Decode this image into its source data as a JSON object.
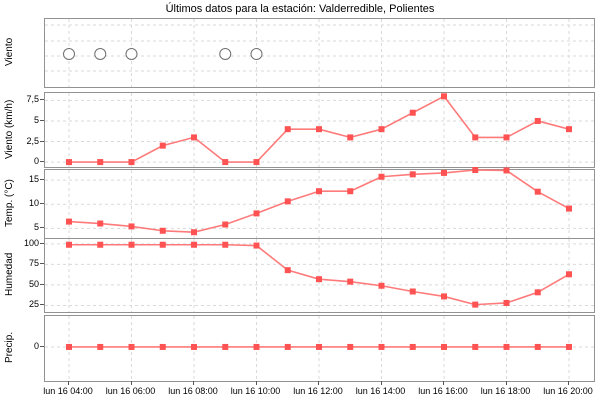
{
  "title": "Últimos datos para la estación: Valderredible, Polientes",
  "colors": {
    "line": "#ff7a7a",
    "marker": "#ff5353",
    "grid": "#d9d9d9",
    "panel_border": "#929292",
    "tick": "#555555",
    "text": "#000000",
    "calm_circle_stroke": "#6f6f6f",
    "background": "#ffffff"
  },
  "x_axis": {
    "times": [
      "04:00",
      "05:00",
      "06:00",
      "07:00",
      "08:00",
      "09:00",
      "10:00",
      "11:00",
      "12:00",
      "13:00",
      "14:00",
      "15:00",
      "16:00",
      "17:00",
      "18:00",
      "19:00",
      "20:00"
    ],
    "tick_labels": [
      "lun 16 04:00",
      "lun 16 06:00",
      "lun 16 08:00",
      "lun 16 10:00",
      "lun 16 12:00",
      "lun 16 14:00",
      "lun 16 16:00",
      "lun 16 18:00",
      "lun 16 20:00"
    ]
  },
  "chart_data": [
    {
      "type": "scatter",
      "ylabel": "Viento",
      "symbol": "calm-circle",
      "calm_times": [
        "04:00",
        "05:00",
        "06:00",
        "09:00",
        "10:00"
      ]
    },
    {
      "type": "line",
      "ylabel": "Viento (km/h)",
      "values": [
        0,
        0,
        0,
        2,
        3,
        0,
        0,
        4,
        4,
        3,
        4,
        6,
        8,
        3,
        3,
        5,
        4
      ],
      "ytick_values": [
        0,
        2.5,
        5,
        7.5
      ],
      "ytick_labels": [
        "0",
        "2,5",
        "5",
        "7,5"
      ],
      "ylim": [
        -0.6,
        8.4
      ]
    },
    {
      "type": "line",
      "ylabel": "Temp. (°C)",
      "values": [
        6.4,
        6.0,
        5.4,
        4.5,
        4.2,
        5.8,
        8.1,
        10.6,
        12.7,
        12.7,
        15.7,
        16.2,
        16.5,
        17.1,
        17.0,
        12.6,
        9.1
      ],
      "ytick_values": [
        5,
        10,
        15
      ],
      "ytick_labels": [
        "5",
        "10",
        "15"
      ],
      "ylim": [
        3.0,
        17.1
      ]
    },
    {
      "type": "line",
      "ylabel": "Humedad",
      "values": [
        99,
        99,
        99,
        99,
        99,
        99,
        98,
        68,
        57,
        54,
        49,
        42,
        36,
        26,
        28,
        41,
        63
      ],
      "ytick_values": [
        25,
        50,
        75,
        100
      ],
      "ytick_labels": [
        "25",
        "50",
        "75",
        "100"
      ],
      "ylim": [
        17,
        106
      ]
    },
    {
      "type": "line",
      "ylabel": "Precip.",
      "values": [
        0,
        0,
        0,
        0,
        0,
        0,
        0,
        0,
        0,
        0,
        0,
        0,
        0,
        0,
        0,
        0,
        0
      ],
      "ytick_values": [
        0
      ],
      "ytick_labels": [
        "0"
      ],
      "ylim": [
        -1.1,
        1.0
      ]
    }
  ]
}
